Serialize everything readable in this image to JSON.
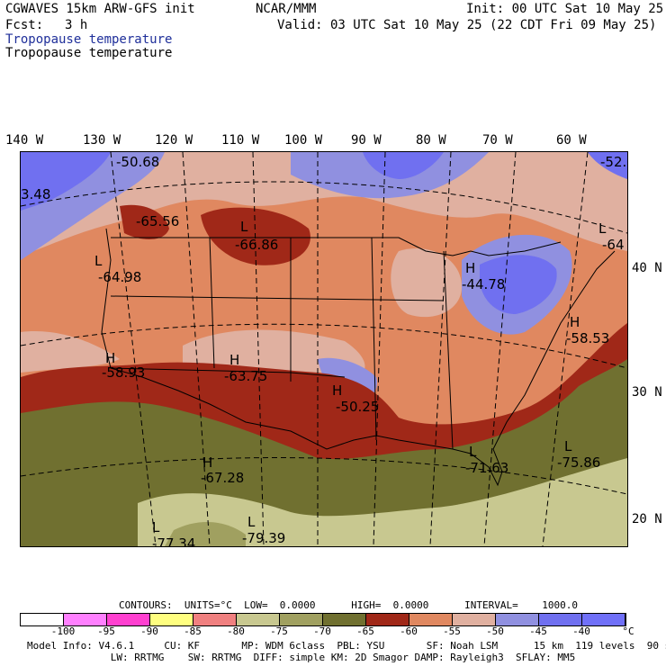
{
  "header": {
    "model": "CGWAVES 15km ARW-GFS init",
    "org": "NCAR/MMM",
    "init": "Init: 00 UTC Sat 10 May 25",
    "fcst_label": "Fcst:",
    "fcst_value": "3 h",
    "valid": "Valid: 03 UTC Sat 10 May 25 (22 CDT Fri 09 May 25)",
    "field_title_1": "Tropopause temperature",
    "field_title_2": "Tropopause temperature"
  },
  "longitudes": [
    "140 W",
    "130 W",
    "120 W",
    "110 W",
    "100 W",
    "90 W",
    "80 W",
    "70 W",
    "60 W"
  ],
  "latitudes": [
    "40 N",
    "30 N",
    "20 N"
  ],
  "map_labels": {
    "l1_val": "-50.68",
    "l2_val": "3.48",
    "l3_val": "-65.56",
    "l4_sym": "L",
    "l4_val": "-66.86",
    "l5_sym": "L",
    "l5_val": "-64.98",
    "l6_sym": "H",
    "l6_val": "-44.78",
    "l7_sym": "L",
    "l7_val": "-64",
    "l8_val": "-52.",
    "l9_sym": "H",
    "l9_val": "-58.53",
    "l10_sym": "H",
    "l10_val": "-58.93",
    "l11_sym": "H",
    "l11_val": "-63.75",
    "l12_sym": "H",
    "l12_val": "-50.25",
    "l13_sym": "H",
    "l13_val": "-67.28",
    "l14_sym": "L",
    "l14_val": "-71.63",
    "l15_sym": "L",
    "l15_val": "-75.86",
    "l16_sym": "L",
    "l16_val": "-77.34",
    "l17_sym": "L",
    "l17_val": "-79.39"
  },
  "contours_line": "CONTOURS:  UNITS=°C  LOW=  0.0000      HIGH=  0.0000      INTERVAL=    1000.0",
  "legend": {
    "colors": [
      "#ffffff",
      "#ff80ff",
      "#ff40d0",
      "#ffff80",
      "#f08080",
      "#c8c890",
      "#a0a060",
      "#707030",
      "#a02818",
      "#e08860",
      "#e0b0a0",
      "#9090e0",
      "#7070f0",
      "#7070f8"
    ],
    "ticks": [
      "-100",
      "-95",
      "-90",
      "-85",
      "-80",
      "-75",
      "-70",
      "-65",
      "-60",
      "-55",
      "-50",
      "-45",
      "-40"
    ],
    "unit": "°C"
  },
  "footer": {
    "line1": "Model Info: V4.6.1     CU: KF       MP: WDM 6class  PBL: YSU       SF: Noah LSM      15 km  119 levels  90 sec",
    "line2": "              LW: RRTMG    SW: RRTMG  DIFF: simple KM: 2D Smagor DAMP: Rayleigh3  SFLAY: MM5"
  }
}
